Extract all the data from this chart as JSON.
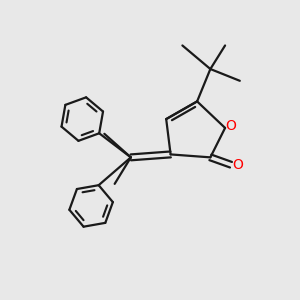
{
  "background_color": "#e8e8e8",
  "line_color": "#1a1a1a",
  "oxygen_color": "#ff0000",
  "line_width": 1.6,
  "dbo": 0.018,
  "figsize": [
    3.0,
    3.0
  ],
  "dpi": 100
}
